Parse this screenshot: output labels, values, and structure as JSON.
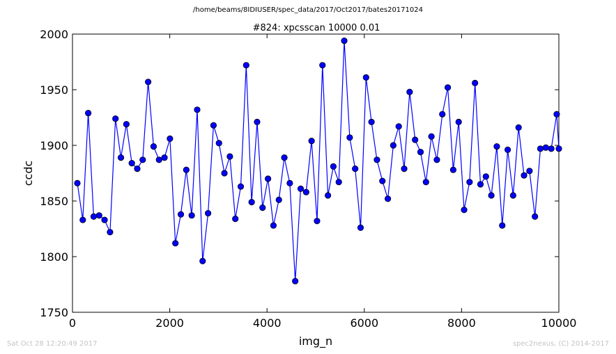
{
  "header": {
    "path": "/home/beams/8IDIUSER/spec_data/2017/Oct2017/bates20171024"
  },
  "footer": {
    "timestamp": "Sat Oct 28 12:20:49 2017",
    "credit": "spec2nexus, (C) 2014-2017"
  },
  "colors": {
    "series": "#0000ff",
    "marker_fill": "#0000ff",
    "marker_edge": "#000000",
    "footer_text": "#c4c4c4"
  },
  "chart_data": {
    "type": "line",
    "title": "#824: xpcsscan 10000 0.01",
    "xlabel": "img_n",
    "ylabel": "ccdc",
    "xlim": [
      0,
      10000
    ],
    "ylim": [
      1750,
      2000
    ],
    "xticks": [
      0,
      2000,
      4000,
      6000,
      8000,
      10000
    ],
    "yticks": [
      1750,
      1800,
      1850,
      1900,
      1950,
      2000
    ],
    "grid": false,
    "legend": false,
    "markers": true,
    "series": [
      {
        "x": [
          100,
          212,
          324,
          436,
          548,
          660,
          772,
          884,
          996,
          1108,
          1220,
          1332,
          1444,
          1556,
          1668,
          1780,
          1892,
          2004,
          2116,
          2228,
          2340,
          2452,
          2564,
          2676,
          2788,
          2900,
          3012,
          3124,
          3236,
          3348,
          3460,
          3572,
          3684,
          3796,
          3908,
          4020,
          4132,
          4244,
          4356,
          4468,
          4580,
          4692,
          4804,
          4916,
          5028,
          5140,
          5252,
          5364,
          5476,
          5588,
          5700,
          5812,
          5924,
          6036,
          6148,
          6260,
          6372,
          6484,
          6596,
          6708,
          6820,
          6932,
          7044,
          7156,
          7268,
          7380,
          7492,
          7604,
          7716,
          7828,
          7940,
          8052,
          8164,
          8276,
          8388,
          8500,
          8612,
          8724,
          8836,
          8948,
          9060,
          9172,
          9284,
          9396,
          9508,
          9620,
          9732,
          9844,
          9956,
          10000
        ],
        "y": [
          1866,
          1833,
          1929,
          1836,
          1837,
          1833,
          1822,
          1924,
          1889,
          1919,
          1884,
          1879,
          1887,
          1957,
          1899,
          1887,
          1889,
          1906,
          1812,
          1838,
          1878,
          1837,
          1932,
          1796,
          1839,
          1918,
          1902,
          1875,
          1890,
          1834,
          1863,
          1972,
          1849,
          1921,
          1844,
          1870,
          1828,
          1851,
          1889,
          1866,
          1778,
          1861,
          1858,
          1904,
          1832,
          1972,
          1855,
          1881,
          1867,
          1994,
          1907,
          1879,
          1826,
          1961,
          1921,
          1887,
          1868,
          1852,
          1900,
          1917,
          1879,
          1948,
          1905,
          1894,
          1867,
          1908,
          1887,
          1928,
          1952,
          1878,
          1921,
          1842,
          1867,
          1956,
          1865,
          1872,
          1855,
          1899,
          1828,
          1896,
          1855,
          1916,
          1873,
          1877,
          1836,
          1897,
          1898,
          1897,
          1928,
          1897
        ]
      }
    ]
  }
}
